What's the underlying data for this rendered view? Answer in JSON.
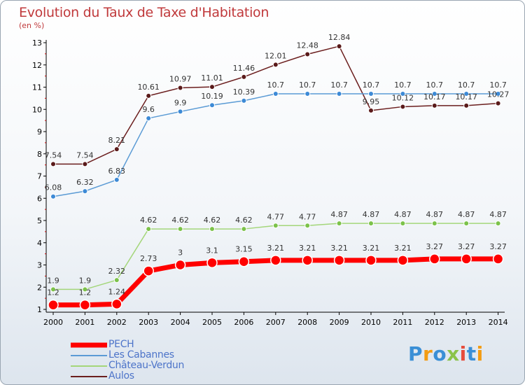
{
  "title": "Evolution du Taux de Taxe d'Habitation",
  "unit": "(en %)",
  "logo": {
    "text": "Proxiti",
    "letters": [
      {
        "ch": "P",
        "color": "#3a8fd6"
      },
      {
        "ch": "r",
        "color": "#f39c12"
      },
      {
        "ch": "o",
        "color": "#3a8fd6"
      },
      {
        "ch": "x",
        "color": "#8bc34a"
      },
      {
        "ch": "i",
        "color": "#e74c3c"
      },
      {
        "ch": "t",
        "color": "#3a8fd6"
      },
      {
        "ch": "i",
        "color": "#f39c12"
      }
    ]
  },
  "legend": {
    "items": [
      {
        "label": "PECH",
        "color": "#ff0000",
        "thickness": 7
      },
      {
        "label": "Les Cabannes",
        "color": "#5b9bd5",
        "thickness": 2
      },
      {
        "label": "Château-Verdun",
        "color": "#a4d67a",
        "thickness": 2
      },
      {
        "label": "Aulos",
        "color": "#6b1e1e",
        "thickness": 2
      }
    ]
  },
  "chart_data": {
    "type": "line",
    "x": [
      "2000",
      "2001",
      "2002",
      "2003",
      "2004",
      "2005",
      "2006",
      "2007",
      "2008",
      "2009",
      "2010",
      "2011",
      "2012",
      "2013",
      "2014"
    ],
    "ylim": [
      1,
      13
    ],
    "yticks": [
      1,
      2,
      3,
      4,
      5,
      6,
      7,
      8,
      9,
      10,
      11,
      12,
      13
    ],
    "grid": false,
    "legend_position": "bottom-left",
    "series": [
      {
        "name": "Aulos",
        "color": "#6b1e1e",
        "marker_fill": "#5a1a1a",
        "stroke": 1.5,
        "marker_r": 3.5,
        "values": [
          7.54,
          7.54,
          8.21,
          10.61,
          10.97,
          11.01,
          11.46,
          12.01,
          12.48,
          12.84,
          9.95,
          10.12,
          10.17,
          10.17,
          10.27
        ],
        "labels": [
          "7.54",
          "7.54",
          "8.21",
          "10.61",
          "10.97",
          "11.01",
          "11.46",
          "12.01",
          "12.48",
          "12.84",
          "9.95",
          "10.12",
          "10.17",
          "10.17",
          "10.27"
        ]
      },
      {
        "name": "Les Cabannes",
        "color": "#5b9bd5",
        "marker_fill": "#3d8ad6",
        "stroke": 1.5,
        "marker_r": 3.5,
        "values": [
          6.08,
          6.32,
          6.83,
          9.6,
          9.9,
          10.19,
          10.39,
          10.7,
          10.7,
          10.7,
          10.7,
          10.7,
          10.7,
          10.7,
          10.7
        ],
        "labels": [
          "6.08",
          "6.32",
          "6.83",
          "9.6",
          "9.9",
          "10.19",
          "10.39",
          "10.7",
          "10.7",
          "10.7",
          "10.7",
          "10.7",
          "10.7",
          "10.7",
          "10.7"
        ]
      },
      {
        "name": "Château-Verdun",
        "color": "#a4d67a",
        "marker_fill": "#7cc24a",
        "stroke": 1.5,
        "marker_r": 3.5,
        "values": [
          1.9,
          1.9,
          2.32,
          4.62,
          4.62,
          4.62,
          4.62,
          4.77,
          4.77,
          4.87,
          4.87,
          4.87,
          4.87,
          4.87,
          4.87
        ],
        "labels": [
          "1.9",
          "1.9",
          "2.32",
          "4.62",
          "4.62",
          "4.62",
          "4.62",
          "4.77",
          "4.77",
          "4.87",
          "4.87",
          "4.87",
          "4.87",
          "4.87",
          "4.87"
        ]
      },
      {
        "name": "PECH",
        "color": "#ff0000",
        "marker_fill": "#ff0000",
        "stroke": 7,
        "marker_r": 7,
        "values": [
          1.2,
          1.2,
          1.24,
          2.73,
          3,
          3.1,
          3.15,
          3.21,
          3.21,
          3.21,
          3.21,
          3.21,
          3.27,
          3.27,
          3.27
        ],
        "labels": [
          "1.2",
          "1.2",
          "1.24",
          "2.73",
          "3",
          "3.1",
          "3.15",
          "3.21",
          "3.21",
          "3.21",
          "3.21",
          "3.21",
          "3.27",
          "3.27",
          "3.27"
        ]
      }
    ]
  }
}
